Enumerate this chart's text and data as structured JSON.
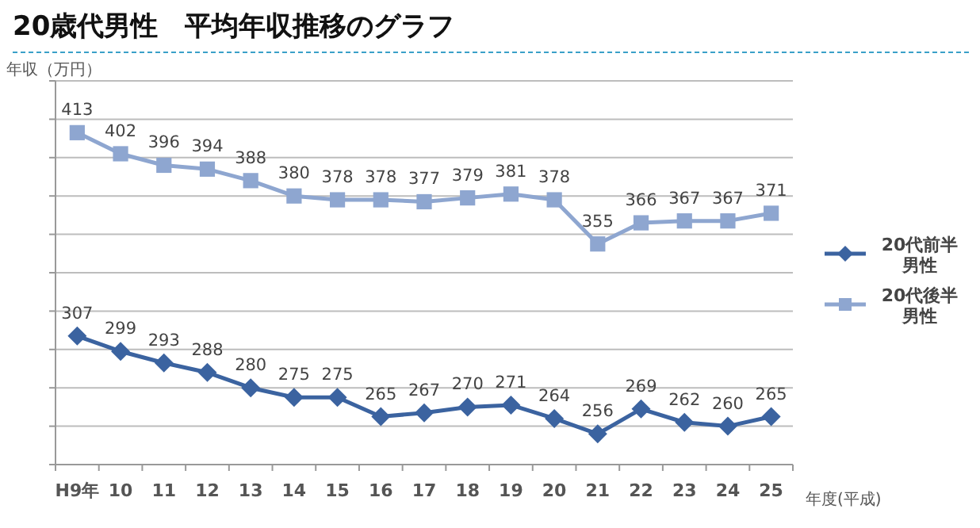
{
  "chart_data": {
    "type": "line",
    "title": "20歳代男性　平均年収推移のグラフ",
    "ylabel": "年収（万円）",
    "xlabel": "年度(平成)",
    "categories": [
      "H9年",
      "10",
      "11",
      "12",
      "13",
      "14",
      "15",
      "16",
      "17",
      "18",
      "19",
      "20",
      "21",
      "22",
      "23",
      "24",
      "25"
    ],
    "series": [
      {
        "name": "20代前半男性",
        "color": "#3b63a0",
        "marker": "diamond",
        "values": [
          307,
          299,
          293,
          288,
          280,
          275,
          275,
          265,
          267,
          270,
          271,
          264,
          256,
          269,
          262,
          260,
          265
        ]
      },
      {
        "name": "20代後半男性",
        "color": "#8ea6d0",
        "marker": "square",
        "values": [
          413,
          402,
          396,
          394,
          388,
          380,
          378,
          378,
          377,
          379,
          381,
          378,
          355,
          366,
          367,
          367,
          371
        ]
      }
    ],
    "ylim": [
      240,
      440
    ],
    "yticks": [
      {
        "value": 240,
        "label": null
      },
      {
        "value": 260,
        "label": null
      },
      {
        "value": 280,
        "label": null
      },
      {
        "value": 300,
        "label": null
      },
      {
        "value": 320,
        "label": null
      },
      {
        "value": 340,
        "label": null
      },
      {
        "value": 360,
        "label": null
      },
      {
        "value": 380,
        "label": null
      },
      {
        "value": 400,
        "label": null
      },
      {
        "value": 420,
        "label": null
      },
      {
        "value": 440,
        "label": null
      }
    ],
    "grid": "y",
    "legend": "right",
    "data_labels": true,
    "line_style": "solid"
  }
}
